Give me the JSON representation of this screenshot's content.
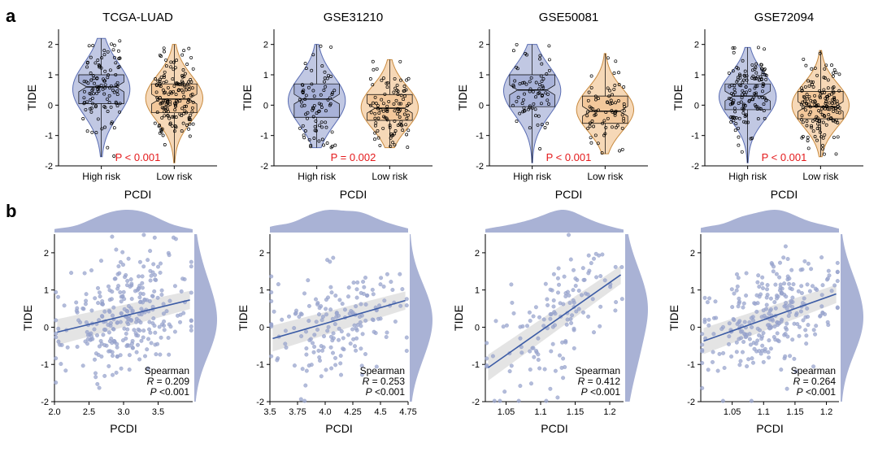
{
  "rowA_label": "a",
  "rowB_label": "b",
  "y_axis_label": "TIDE",
  "x_axis_label_violin": "PCDI",
  "x_axis_label_scatter": "PCDI",
  "violin_colors": {
    "high_fill": "#a6b1d7",
    "high_stroke": "#5a6db3",
    "low_fill": "#f2c799",
    "low_stroke": "#c88a3f",
    "point": "#000000",
    "axis": "#000000"
  },
  "scatter_colors": {
    "point_fill": "#9aa5ce",
    "point_stroke": "#8a96c4",
    "line": "#3b5ba5",
    "band": "#d8d8d8",
    "density": "#9aa5ce",
    "axis": "#000000"
  },
  "violin_ylim": [
    -2,
    2.5
  ],
  "violin_yticks": [
    -2,
    -1,
    0,
    1,
    2
  ],
  "violin_categories": [
    "High risk",
    "Low risk"
  ],
  "violin_panels": [
    {
      "title": "TCGA-LUAD",
      "pvalue": "P < 0.001",
      "groups": [
        {
          "median": 0.6,
          "q1": 0.05,
          "q3": 1.0,
          "whisk_lo": -1.7,
          "whisk_hi": 2.2,
          "n": 110,
          "spread": 0.85
        },
        {
          "median": 0.2,
          "q1": -0.25,
          "q3": 0.7,
          "whisk_lo": -1.9,
          "whisk_hi": 2.0,
          "n": 160,
          "spread": 0.75
        }
      ]
    },
    {
      "title": "GSE31210",
      "pvalue": "P = 0.002",
      "groups": [
        {
          "median": 0.2,
          "q1": -0.4,
          "q3": 0.7,
          "whisk_lo": -1.4,
          "whisk_hi": 2.0,
          "n": 80,
          "spread": 0.8
        },
        {
          "median": -0.1,
          "q1": -0.5,
          "q3": 0.35,
          "whisk_lo": -1.4,
          "whisk_hi": 1.5,
          "n": 100,
          "spread": 0.7
        }
      ]
    },
    {
      "title": "GSE50081",
      "pvalue": "P < 0.001",
      "groups": [
        {
          "median": 0.5,
          "q1": -0.05,
          "q3": 1.0,
          "whisk_lo": -1.9,
          "whisk_hi": 2.0,
          "n": 70,
          "spread": 0.8
        },
        {
          "median": -0.2,
          "q1": -0.6,
          "q3": 0.3,
          "whisk_lo": -1.6,
          "whisk_hi": 1.7,
          "n": 70,
          "spread": 0.7
        }
      ]
    },
    {
      "title": "GSE72094",
      "pvalue": "P < 0.001",
      "groups": [
        {
          "median": 0.3,
          "q1": -0.15,
          "q3": 0.7,
          "whisk_lo": -1.9,
          "whisk_hi": 1.9,
          "n": 140,
          "spread": 0.75
        },
        {
          "median": -0.05,
          "q1": -0.45,
          "q3": 0.45,
          "whisk_lo": -1.7,
          "whisk_hi": 1.8,
          "n": 150,
          "spread": 0.7
        }
      ]
    }
  ],
  "scatter_panels": [
    {
      "xlim": [
        2.0,
        4.0
      ],
      "ylim": [
        -2,
        2.5
      ],
      "xticks": [
        2.0,
        2.5,
        3.0,
        3.5
      ],
      "yticks": [
        -2,
        -1,
        0,
        1,
        2
      ],
      "n": 300,
      "slope": 0.45,
      "intercept": -1.05,
      "spearman_r": "0.209",
      "spearman_p": "<0.001",
      "stat_label": "Spearman"
    },
    {
      "xlim": [
        3.5,
        4.75
      ],
      "ylim": [
        -2,
        2.5
      ],
      "xticks": [
        3.5,
        3.75,
        4.0,
        4.25,
        4.5,
        4.75
      ],
      "yticks": [
        -2,
        -1,
        0,
        1,
        2
      ],
      "n": 180,
      "slope": 0.85,
      "intercept": -3.3,
      "spearman_r": "0.253",
      "spearman_p": "<0.001",
      "stat_label": "Spearman"
    },
    {
      "xlim": [
        1.02,
        1.22
      ],
      "ylim": [
        -2,
        2.5
      ],
      "xticks": [
        1.05,
        1.1,
        1.15,
        1.2
      ],
      "yticks": [
        -2,
        -1,
        0,
        1,
        2
      ],
      "n": 140,
      "slope": 13.0,
      "intercept": -14.4,
      "spearman_r": "0.412",
      "spearman_p": "<0.001",
      "stat_label": "Spearman"
    },
    {
      "xlim": [
        1.0,
        1.22
      ],
      "ylim": [
        -2,
        2.5
      ],
      "xticks": [
        1.05,
        1.1,
        1.15,
        1.2
      ],
      "yticks": [
        -2,
        -1,
        0,
        1,
        2
      ],
      "n": 280,
      "slope": 6.0,
      "intercept": -6.4,
      "spearman_r": "0.264",
      "spearman_p": "<0.001",
      "stat_label": "Spearman"
    }
  ]
}
